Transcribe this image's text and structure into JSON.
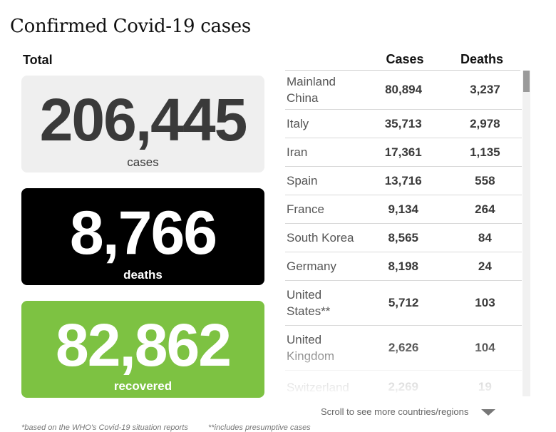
{
  "title": "Confirmed Covid-19 cases",
  "totals": {
    "label": "Total",
    "cases": {
      "value": "206,445",
      "label": "cases",
      "color": "#efefef"
    },
    "deaths": {
      "value": "8,766",
      "label": "deaths",
      "color": "#000000"
    },
    "recovered": {
      "value": "82,862",
      "label": "recovered",
      "color": "#7dc242"
    }
  },
  "table": {
    "headers": {
      "cases": "Cases",
      "deaths": "Deaths"
    }
  },
  "scroll_hint": "Scroll to see more countries/regions",
  "footnotes": [
    "*based on the WHO's Covid-19 situation reports",
    "**includes presumptive cases"
  ],
  "chart_data": {
    "type": "table",
    "columns": [
      "",
      "Cases",
      "Deaths"
    ],
    "rows": [
      {
        "country": "Mainland China",
        "cases": "80,894",
        "deaths": "3,237"
      },
      {
        "country": "Italy",
        "cases": "35,713",
        "deaths": "2,978"
      },
      {
        "country": "Iran",
        "cases": "17,361",
        "deaths": "1,135"
      },
      {
        "country": "Spain",
        "cases": "13,716",
        "deaths": "558"
      },
      {
        "country": "France",
        "cases": "9,134",
        "deaths": "264"
      },
      {
        "country": "South Korea",
        "cases": "8,565",
        "deaths": "84"
      },
      {
        "country": "Germany",
        "cases": "8,198",
        "deaths": "24"
      },
      {
        "country": "United States**",
        "cases": "5,712",
        "deaths": "103"
      },
      {
        "country": "United Kingdom",
        "cases": "2,626",
        "deaths": "104"
      },
      {
        "country": "Switzerland",
        "cases": "2,269",
        "deaths": "19"
      }
    ]
  }
}
